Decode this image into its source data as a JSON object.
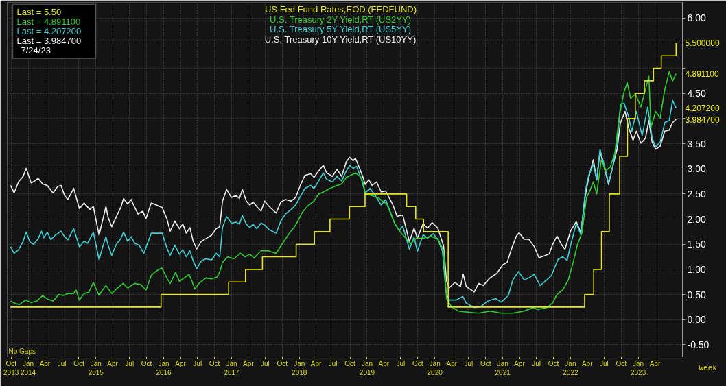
{
  "chart_data": {
    "type": "line",
    "xlim": [
      "2013-09-10",
      "2023-08-27"
    ],
    "ylim": [
      -0.74,
      6.31
    ],
    "xticks": [
      {
        "value": "2013-10",
        "label": "Oct\n2013"
      },
      {
        "value": "2014-01",
        "label": "Jan\n2014"
      },
      {
        "value": "2014-04",
        "label": "Apr"
      },
      {
        "value": "2014-07",
        "label": "Jul"
      },
      {
        "value": "2014-10",
        "label": "Oct"
      },
      {
        "value": "2015-01",
        "label": "Jan\n2015"
      },
      {
        "value": "2015-04",
        "label": "Apr"
      },
      {
        "value": "2015-07",
        "label": "Jul"
      },
      {
        "value": "2015-10",
        "label": "Oct"
      },
      {
        "value": "2016-01",
        "label": "Jan\n2016"
      },
      {
        "value": "2016-04",
        "label": "Apr"
      },
      {
        "value": "2016-07",
        "label": "Jul"
      },
      {
        "value": "2016-10",
        "label": "Oct"
      },
      {
        "value": "2017-01",
        "label": "Jan\n2017"
      },
      {
        "value": "2017-04",
        "label": "Apr"
      },
      {
        "value": "2017-07",
        "label": "Jul"
      },
      {
        "value": "2017-10",
        "label": "Oct"
      },
      {
        "value": "2018-01",
        "label": "Jan\n2018"
      },
      {
        "value": "2018-04",
        "label": "Apr"
      },
      {
        "value": "2018-07",
        "label": "Jul"
      },
      {
        "value": "2018-10",
        "label": "Oct"
      },
      {
        "value": "2019-01",
        "label": "Jan\n2019"
      },
      {
        "value": "2019-04",
        "label": "Apr"
      },
      {
        "value": "2019-07",
        "label": "Jul"
      },
      {
        "value": "2019-10",
        "label": "Oct"
      },
      {
        "value": "2020-01",
        "label": "Jan\n2020"
      },
      {
        "value": "2020-04",
        "label": "Apr"
      },
      {
        "value": "2020-07",
        "label": "Jul"
      },
      {
        "value": "2020-10",
        "label": "Oct"
      },
      {
        "value": "2021-01",
        "label": "Jan\n2021"
      },
      {
        "value": "2021-04",
        "label": "Apr"
      },
      {
        "value": "2021-07",
        "label": "Jul"
      },
      {
        "value": "2021-10",
        "label": "Oct"
      },
      {
        "value": "2022-01",
        "label": "Jan\n2022"
      },
      {
        "value": "2022-04",
        "label": "Apr"
      },
      {
        "value": "2022-07",
        "label": "Jul"
      },
      {
        "value": "2022-10",
        "label": "Oct"
      },
      {
        "value": "2023-01",
        "label": "Jan\n2023"
      },
      {
        "value": "2023-04",
        "label": "Apr"
      }
    ],
    "yticks": [
      {
        "value": -0.5,
        "label": "-0.50"
      },
      {
        "value": 0,
        "label": "0.00"
      },
      {
        "value": 0.5,
        "label": "0.50"
      },
      {
        "value": 1,
        "label": "1.00"
      },
      {
        "value": 1.5,
        "label": "1.50"
      },
      {
        "value": 2,
        "label": "2.00"
      },
      {
        "value": 2.5,
        "label": "2.50"
      },
      {
        "value": 3,
        "label": "3.00"
      },
      {
        "value": 3.5,
        "label": "3.50"
      },
      {
        "value": 4,
        "label": null
      },
      {
        "value": 4.5,
        "label": "4.50"
      },
      {
        "value": 5,
        "label": null
      },
      {
        "value": 5.5,
        "label": null
      },
      {
        "value": 6,
        "label": "6.00"
      }
    ],
    "grid": true,
    "legend": "top",
    "series": [
      {
        "name": "US Fed Fund Rates,EOD (FEDFUND)",
        "type": "step",
        "color": "#e6e619",
        "x": [
          "2013-09-27",
          "2015-12-18",
          "2016-12-16",
          "2017-03-17",
          "2017-06-16",
          "2017-12-15",
          "2018-03-23",
          "2018-06-15",
          "2018-09-28",
          "2018-12-21",
          "2019-08-02",
          "2019-09-20",
          "2019-11-01",
          "2020-03-13",
          "2022-03-18",
          "2022-05-06",
          "2022-06-17",
          "2022-07-29",
          "2022-09-23",
          "2022-11-04",
          "2022-12-16",
          "2023-02-03",
          "2023-03-24",
          "2023-05-05",
          "2023-07-24"
        ],
        "values": [
          0.25,
          0.5,
          0.75,
          1.0,
          1.25,
          1.5,
          1.75,
          2.0,
          2.25,
          2.5,
          2.25,
          2.0,
          1.75,
          0.25,
          0.5,
          1.0,
          1.75,
          2.5,
          3.25,
          4.0,
          4.5,
          4.75,
          5.0,
          5.25,
          5.5
        ]
      },
      {
        "name": "U.S. Treasury 2Y Yield,RT (US2YY)",
        "color": "#33cc33",
        "x": [
          "2013-09-28",
          "2013-10-23",
          "2013-11-16",
          "2013-12-17",
          "2014-01-17",
          "2014-02-17",
          "2014-03-20",
          "2014-04-14",
          "2014-05-15",
          "2014-06-15",
          "2014-07-10",
          "2014-08-03",
          "2014-09-03",
          "2014-09-16",
          "2014-10-04",
          "2014-10-29",
          "2014-11-23",
          "2014-12-18",
          "2015-01-18",
          "2015-02-05",
          "2015-02-24",
          "2015-03-27",
          "2015-04-27",
          "2015-05-28",
          "2015-06-21",
          "2015-07-29",
          "2015-08-29",
          "2015-09-28",
          "2015-10-26",
          "2015-11-23",
          "2015-12-22",
          "2016-01-18",
          "2016-02-05",
          "2016-03-05",
          "2016-03-26",
          "2016-04-20",
          "2016-05-17",
          "2016-06-02",
          "2016-06-17",
          "2016-07-09",
          "2016-08-15",
          "2016-09-15",
          "2016-10-16",
          "2016-10-31",
          "2016-11-13",
          "2016-12-11",
          "2017-01-12",
          "2017-02-18",
          "2017-03-15",
          "2017-04-09",
          "2017-05-03",
          "2017-06-09",
          "2017-07-17",
          "2017-08-29",
          "2017-09-29",
          "2017-11-05",
          "2017-12-12",
          "2018-01-18",
          "2018-02-12",
          "2018-03-21",
          "2018-04-15",
          "2018-05-10",
          "2018-06-16",
          "2018-07-23",
          "2018-08-17",
          "2018-09-11",
          "2018-10-05",
          "2018-10-30",
          "2018-11-24",
          "2018-12-12",
          "2018-12-22",
          "2019-01-28",
          "2019-03-06",
          "2019-04-17",
          "2019-05-30",
          "2019-06-23",
          "2019-07-24",
          "2019-08-23",
          "2019-09-23",
          "2019-10-30",
          "2019-12-11",
          "2020-01-17",
          "2020-02-17",
          "2020-03-04",
          "2020-03-30",
          "2020-05-06",
          "2020-06-24",
          "2020-08-24",
          "2020-10-24",
          "2020-12-24",
          "2021-02-24",
          "2021-04-26",
          "2021-06-14",
          "2021-07-08",
          "2021-08-26",
          "2021-09-26",
          "2021-10-20",
          "2021-11-20",
          "2021-12-20",
          "2022-01-14",
          "2022-02-07",
          "2022-03-04",
          "2022-03-28",
          "2022-04-15",
          "2022-05-04",
          "2022-05-22",
          "2022-06-16",
          "2022-07-10",
          "2022-08-03",
          "2022-08-28",
          "2022-09-21",
          "2022-10-16",
          "2022-11-03",
          "2022-11-21",
          "2022-12-16",
          "2023-01-15",
          "2023-02-09",
          "2023-02-27",
          "2023-03-11",
          "2023-04-05",
          "2023-04-29",
          "2023-05-24",
          "2023-06-17",
          "2023-07-05",
          "2023-07-24"
        ],
        "values": [
          0.37,
          0.32,
          0.3,
          0.39,
          0.34,
          0.37,
          0.48,
          0.41,
          0.37,
          0.5,
          0.48,
          0.52,
          0.52,
          0.59,
          0.39,
          0.52,
          0.54,
          0.74,
          0.48,
          0.59,
          0.68,
          0.52,
          0.63,
          0.72,
          0.63,
          0.72,
          0.7,
          0.59,
          0.88,
          0.97,
          1.03,
          0.83,
          0.72,
          0.94,
          0.76,
          0.83,
          0.9,
          0.76,
          0.61,
          0.72,
          0.83,
          0.81,
          0.85,
          0.97,
          1.14,
          1.25,
          1.21,
          1.32,
          1.25,
          1.3,
          1.23,
          1.37,
          1.37,
          1.32,
          1.5,
          1.7,
          1.88,
          2.14,
          2.25,
          2.36,
          2.5,
          2.54,
          2.61,
          2.67,
          2.7,
          2.83,
          2.87,
          2.92,
          2.85,
          2.72,
          2.5,
          2.47,
          2.41,
          2.3,
          1.91,
          1.77,
          1.64,
          1.51,
          1.62,
          1.62,
          1.66,
          1.6,
          1.38,
          0.42,
          0.26,
          0.17,
          0.15,
          0.13,
          0.17,
          0.13,
          0.13,
          0.17,
          0.24,
          0.2,
          0.24,
          0.33,
          0.5,
          0.59,
          0.79,
          1.12,
          1.49,
          1.73,
          2.43,
          2.56,
          2.74,
          2.5,
          3.18,
          2.96,
          3.04,
          3.31,
          4.05,
          4.53,
          4.71,
          4.4,
          4.49,
          4.23,
          4.58,
          4.84,
          3.83,
          4.14,
          4.01,
          4.58,
          4.93,
          4.75,
          4.8911
        ]
      },
      {
        "name": "U.S. Treasury 5Y Yield,RT (US5YY)",
        "color": "#3fd0d6",
        "x": [
          "2013-09-28",
          "2013-10-17",
          "2013-11-10",
          "2013-12-05",
          "2013-12-21",
          "2014-01-11",
          "2014-01-30",
          "2014-02-24",
          "2014-03-14",
          "2014-03-26",
          "2014-04-14",
          "2014-05-03",
          "2014-05-27",
          "2014-06-27",
          "2014-07-16",
          "2014-08-03",
          "2014-09-03",
          "2014-10-04",
          "2014-10-29",
          "2014-11-17",
          "2014-12-18",
          "2015-01-18",
          "2015-02-05",
          "2015-02-24",
          "2015-03-08",
          "2015-03-27",
          "2015-04-21",
          "2015-05-15",
          "2015-05-30",
          "2015-06-21",
          "2015-07-10",
          "2015-07-29",
          "2015-08-22",
          "2015-09-16",
          "2015-10-26",
          "2015-11-23",
          "2015-12-24",
          "2016-01-18",
          "2016-02-05",
          "2016-03-01",
          "2016-03-26",
          "2016-04-13",
          "2016-05-02",
          "2016-05-21",
          "2016-06-08",
          "2016-06-27",
          "2016-07-22",
          "2016-08-15",
          "2016-09-15",
          "2016-10-10",
          "2016-10-29",
          "2016-11-13",
          "2016-12-05",
          "2016-12-31",
          "2017-01-25",
          "2017-02-12",
          "2017-02-28",
          "2017-03-21",
          "2017-04-09",
          "2017-04-27",
          "2017-05-16",
          "2017-06-09",
          "2017-06-28",
          "2017-07-23",
          "2017-08-29",
          "2017-09-23",
          "2017-10-18",
          "2017-11-18",
          "2017-12-12",
          "2018-01-06",
          "2018-01-31",
          "2018-03-03",
          "2018-03-21",
          "2018-04-15",
          "2018-05-10",
          "2018-05-28",
          "2018-06-28",
          "2018-07-23",
          "2018-08-17",
          "2018-09-11",
          "2018-09-29",
          "2018-10-18",
          "2018-11-05",
          "2018-11-30",
          "2018-12-22",
          "2019-01-16",
          "2019-02-09",
          "2019-03-18",
          "2019-04-11",
          "2019-05-30",
          "2019-06-23",
          "2019-07-12",
          "2019-08-17",
          "2019-09-11",
          "2019-09-29",
          "2019-10-30",
          "2019-11-23",
          "2019-12-23",
          "2020-01-17",
          "2020-02-11",
          "2020-03-01",
          "2020-03-18",
          "2020-04-24",
          "2020-05-31",
          "2020-06-18",
          "2020-07-31",
          "2020-09-05",
          "2020-10-12",
          "2020-11-24",
          "2020-12-24",
          "2021-01-31",
          "2021-02-24",
          "2021-03-27",
          "2021-04-26",
          "2021-05-21",
          "2021-06-20",
          "2021-07-21",
          "2021-08-26",
          "2021-09-20",
          "2021-10-26",
          "2021-11-20",
          "2021-12-14",
          "2022-01-02",
          "2022-02-01",
          "2022-02-26",
          "2022-03-22",
          "2022-04-09",
          "2022-05-04",
          "2022-05-22",
          "2022-06-09",
          "2022-07-04",
          "2022-07-25",
          "2022-08-16",
          "2022-09-09",
          "2022-09-27",
          "2022-10-16",
          "2022-11-09",
          "2022-11-27",
          "2022-12-22",
          "2023-01-22",
          "2023-02-21",
          "2023-03-17",
          "2023-04-05",
          "2023-04-29",
          "2023-05-24",
          "2023-06-17",
          "2023-07-05",
          "2023-07-24"
        ],
        "values": [
          1.45,
          1.32,
          1.39,
          1.56,
          1.74,
          1.54,
          1.5,
          1.61,
          1.76,
          1.63,
          1.74,
          1.59,
          1.68,
          1.76,
          1.65,
          1.59,
          1.81,
          1.45,
          1.56,
          1.52,
          1.74,
          1.19,
          1.43,
          1.65,
          1.48,
          1.28,
          1.5,
          1.61,
          1.74,
          1.56,
          1.65,
          1.52,
          1.48,
          1.32,
          1.72,
          1.72,
          1.72,
          1.43,
          1.28,
          1.48,
          1.3,
          1.39,
          1.25,
          1.37,
          1.17,
          1.01,
          1.17,
          1.21,
          1.19,
          1.32,
          1.25,
          1.83,
          2.05,
          1.92,
          1.94,
          1.9,
          2.07,
          1.9,
          1.83,
          1.9,
          1.81,
          1.92,
          1.88,
          1.79,
          1.72,
          1.96,
          2.1,
          2.19,
          2.28,
          2.45,
          2.61,
          2.67,
          2.61,
          2.76,
          2.92,
          2.79,
          2.74,
          2.85,
          2.76,
          2.96,
          3.07,
          3.01,
          3.05,
          2.81,
          2.52,
          2.61,
          2.5,
          2.28,
          2.39,
          1.91,
          1.77,
          1.86,
          1.4,
          1.64,
          1.36,
          1.69,
          1.62,
          1.71,
          1.6,
          1.36,
          0.55,
          0.39,
          0.39,
          0.46,
          0.33,
          0.24,
          0.26,
          0.37,
          0.42,
          0.35,
          0.48,
          0.79,
          0.96,
          0.79,
          0.83,
          0.9,
          0.68,
          0.79,
          0.88,
          1.2,
          1.25,
          1.18,
          1.49,
          1.91,
          1.69,
          2.56,
          2.87,
          3.09,
          2.78,
          3.39,
          3.04,
          2.72,
          3.04,
          3.53,
          4.27,
          4.31,
          4.05,
          3.75,
          4.14,
          3.66,
          4.23,
          3.61,
          3.44,
          3.53,
          3.92,
          3.96,
          4.36,
          4.2072
        ]
      },
      {
        "name": "U.S. Treasury 10Y Yield,RT (US10YY)",
        "color": "#eeeeee",
        "x": [
          "2013-09-28",
          "2013-10-17",
          "2013-11-10",
          "2013-12-05",
          "2013-12-21",
          "2014-01-17",
          "2014-02-05",
          "2014-02-24",
          "2014-03-20",
          "2014-04-14",
          "2014-05-15",
          "2014-06-09",
          "2014-06-27",
          "2014-07-16",
          "2014-08-03",
          "2014-09-03",
          "2014-10-04",
          "2014-10-29",
          "2014-11-29",
          "2014-12-18",
          "2015-01-18",
          "2015-02-05",
          "2015-02-24",
          "2015-03-08",
          "2015-03-27",
          "2015-04-21",
          "2015-05-15",
          "2015-05-30",
          "2015-06-21",
          "2015-07-10",
          "2015-07-29",
          "2015-08-16",
          "2015-09-10",
          "2015-09-28",
          "2015-10-26",
          "2015-11-23",
          "2015-12-24",
          "2016-01-18",
          "2016-02-05",
          "2016-03-01",
          "2016-03-26",
          "2016-04-13",
          "2016-05-02",
          "2016-05-21",
          "2016-06-08",
          "2016-06-27",
          "2016-07-22",
          "2016-08-15",
          "2016-09-15",
          "2016-10-10",
          "2016-10-29",
          "2016-11-13",
          "2016-12-05",
          "2016-12-31",
          "2017-01-25",
          "2017-02-12",
          "2017-02-28",
          "2017-03-21",
          "2017-04-09",
          "2017-04-27",
          "2017-05-16",
          "2017-06-09",
          "2017-06-28",
          "2017-07-23",
          "2017-08-29",
          "2017-09-23",
          "2017-10-18",
          "2017-11-18",
          "2017-12-12",
          "2018-01-06",
          "2018-01-31",
          "2018-03-03",
          "2018-03-21",
          "2018-04-15",
          "2018-05-10",
          "2018-05-28",
          "2018-06-28",
          "2018-07-23",
          "2018-08-17",
          "2018-09-11",
          "2018-09-29",
          "2018-10-18",
          "2018-10-30",
          "2018-11-24",
          "2018-12-12",
          "2018-12-22",
          "2019-01-10",
          "2019-01-28",
          "2019-02-21",
          "2019-03-18",
          "2019-04-11",
          "2019-05-18",
          "2019-06-11",
          "2019-07-12",
          "2019-08-17",
          "2019-09-11",
          "2019-09-29",
          "2019-10-30",
          "2019-11-23",
          "2019-12-17",
          "2020-01-17",
          "2020-02-17",
          "2020-03-04",
          "2020-03-18",
          "2020-04-18",
          "2020-05-18",
          "2020-06-02",
          "2020-06-18",
          "2020-07-31",
          "2020-08-24",
          "2020-09-18",
          "2020-10-24",
          "2020-11-30",
          "2021-01-01",
          "2021-01-25",
          "2021-02-18",
          "2021-03-15",
          "2021-03-30",
          "2021-04-26",
          "2021-05-21",
          "2021-06-20",
          "2021-07-15",
          "2021-08-14",
          "2021-09-08",
          "2021-09-26",
          "2021-10-20",
          "2021-11-14",
          "2021-12-02",
          "2022-01-02",
          "2022-02-01",
          "2022-02-26",
          "2022-03-20",
          "2022-04-09",
          "2022-05-04",
          "2022-05-22",
          "2022-06-09",
          "2022-07-04",
          "2022-07-25",
          "2022-08-16",
          "2022-09-09",
          "2022-09-27",
          "2022-10-22",
          "2022-11-09",
          "2022-12-04",
          "2022-12-22",
          "2023-01-15",
          "2023-02-09",
          "2023-02-27",
          "2023-03-17",
          "2023-04-05",
          "2023-04-29",
          "2023-05-24",
          "2023-06-17",
          "2023-07-05",
          "2023-07-24"
        ],
        "values": [
          2.67,
          2.52,
          2.74,
          2.85,
          3.01,
          2.72,
          2.76,
          2.81,
          2.7,
          2.67,
          2.52,
          2.65,
          2.67,
          2.47,
          2.39,
          2.61,
          2.21,
          2.32,
          2.19,
          2.25,
          1.68,
          1.96,
          2.25,
          2.03,
          1.85,
          2.05,
          2.23,
          2.41,
          2.3,
          2.39,
          2.23,
          2.1,
          2.16,
          2.01,
          2.32,
          2.28,
          2.23,
          2.01,
          1.76,
          1.96,
          1.81,
          1.9,
          1.72,
          1.83,
          1.56,
          1.41,
          1.56,
          1.61,
          1.68,
          1.81,
          1.85,
          2.36,
          2.59,
          2.43,
          2.47,
          2.41,
          2.59,
          2.36,
          2.28,
          2.34,
          2.25,
          2.16,
          2.36,
          2.25,
          2.12,
          2.34,
          2.39,
          2.36,
          2.43,
          2.67,
          2.87,
          2.9,
          2.83,
          2.96,
          3.07,
          2.92,
          2.85,
          2.99,
          2.85,
          3.14,
          3.23,
          3.16,
          3.21,
          2.99,
          2.81,
          2.69,
          2.78,
          2.67,
          2.74,
          2.54,
          2.56,
          2.3,
          2.06,
          2.08,
          1.55,
          1.82,
          1.62,
          1.91,
          1.82,
          1.93,
          1.82,
          1.47,
          0.77,
          0.63,
          0.74,
          0.66,
          0.9,
          0.66,
          0.55,
          0.72,
          0.68,
          0.83,
          0.92,
          1.09,
          1.14,
          1.42,
          1.66,
          1.73,
          1.6,
          1.6,
          1.45,
          1.23,
          1.27,
          1.31,
          1.49,
          1.66,
          1.49,
          1.4,
          1.77,
          1.95,
          1.73,
          2.43,
          2.83,
          3.18,
          2.78,
          3.35,
          3.0,
          2.69,
          3.04,
          3.39,
          3.92,
          4.14,
          3.83,
          3.57,
          3.75,
          3.51,
          3.61,
          3.96,
          3.53,
          3.39,
          3.45,
          3.75,
          3.77,
          3.92,
          3.9847
        ]
      }
    ],
    "annotations": [
      "Last = 5.50",
      "Last = 4.891100",
      "Last = 4.207200",
      "Last = 3.984700",
      "7/24/23",
      "No Gaps",
      "Week",
      {
        "text": "5.500000",
        "x": "2023-07-24",
        "y": 5.5
      },
      {
        "text": "4.891100",
        "x": "2023-07-24",
        "y": 4.8911
      },
      {
        "text": "4.207200",
        "x": "2023-07-24",
        "y": 4.2072
      },
      {
        "text": "3.984700",
        "x": "2023-07-24",
        "y": 3.9847
      }
    ]
  }
}
